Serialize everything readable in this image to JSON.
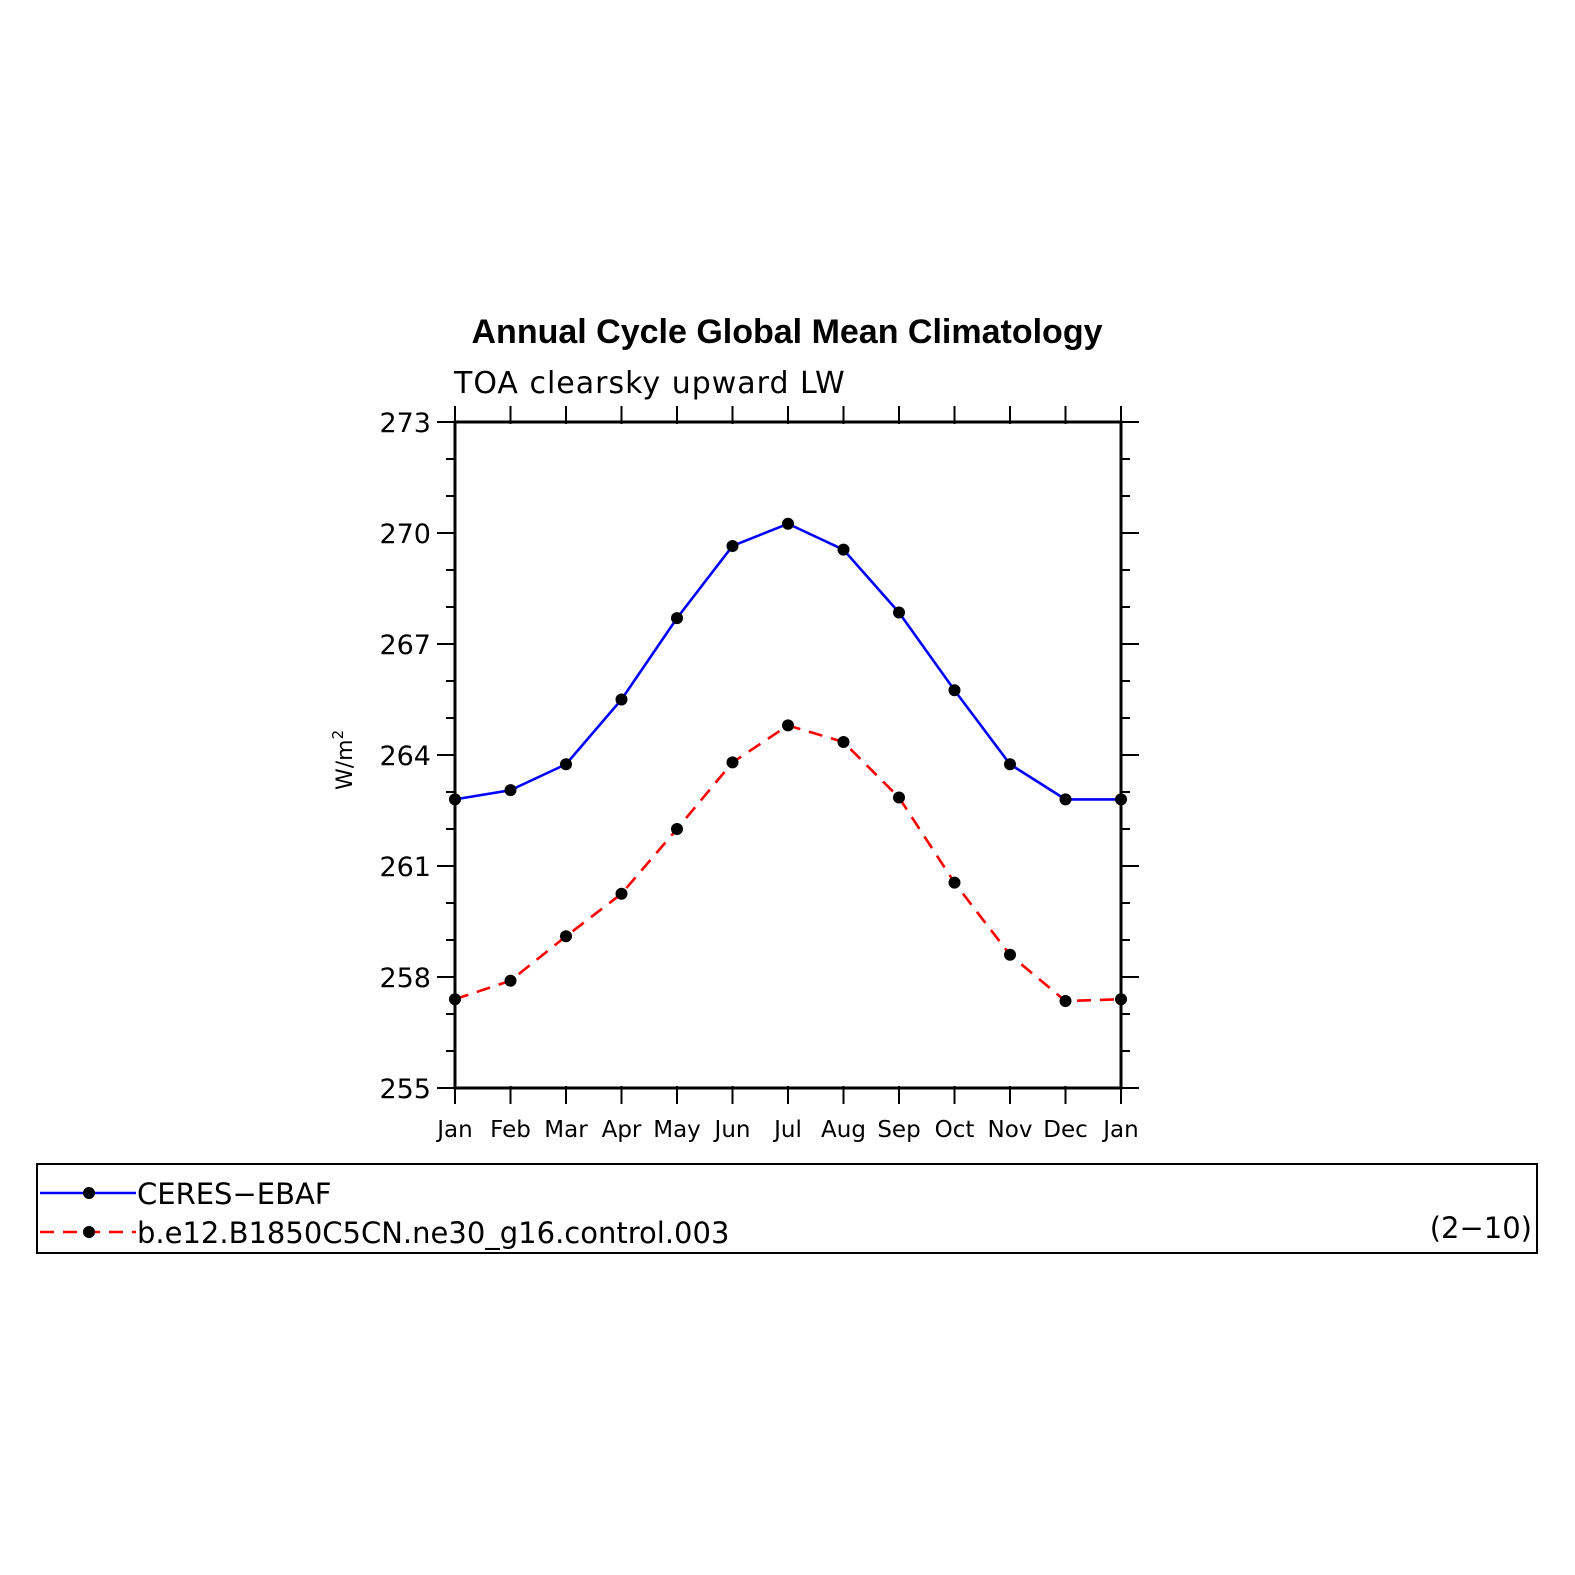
{
  "chart_data": {
    "type": "line",
    "title": "Annual Cycle Global Mean Climatology",
    "subtitle": "TOA clearsky upward LW",
    "ylabel": "W/m",
    "ylabel_superscript": "2",
    "categories": [
      "Jan",
      "Feb",
      "Mar",
      "Apr",
      "May",
      "Jun",
      "Jul",
      "Aug",
      "Sep",
      "Oct",
      "Nov",
      "Dec",
      "Jan"
    ],
    "ylim": [
      255,
      273
    ],
    "yticks": [
      255,
      258,
      261,
      264,
      267,
      270,
      273
    ],
    "series": [
      {
        "name": "CERES−EBAF",
        "color": "#0000ff",
        "dash": "solid",
        "values": [
          262.8,
          263.05,
          263.75,
          265.5,
          267.7,
          269.65,
          270.25,
          269.55,
          267.85,
          265.75,
          263.75,
          262.8,
          262.8
        ]
      },
      {
        "name": "b.e12.B1850C5CN.ne30_g16.control.003",
        "color": "#ff0000",
        "dash": "dashed",
        "values": [
          257.4,
          257.9,
          259.1,
          260.25,
          262.0,
          263.8,
          264.8,
          264.35,
          262.85,
          260.55,
          258.6,
          257.35,
          257.4
        ]
      }
    ],
    "legend_placement": "bottom",
    "marker_color": "#000000"
  },
  "legend": {
    "years_label": "(2−10)"
  }
}
